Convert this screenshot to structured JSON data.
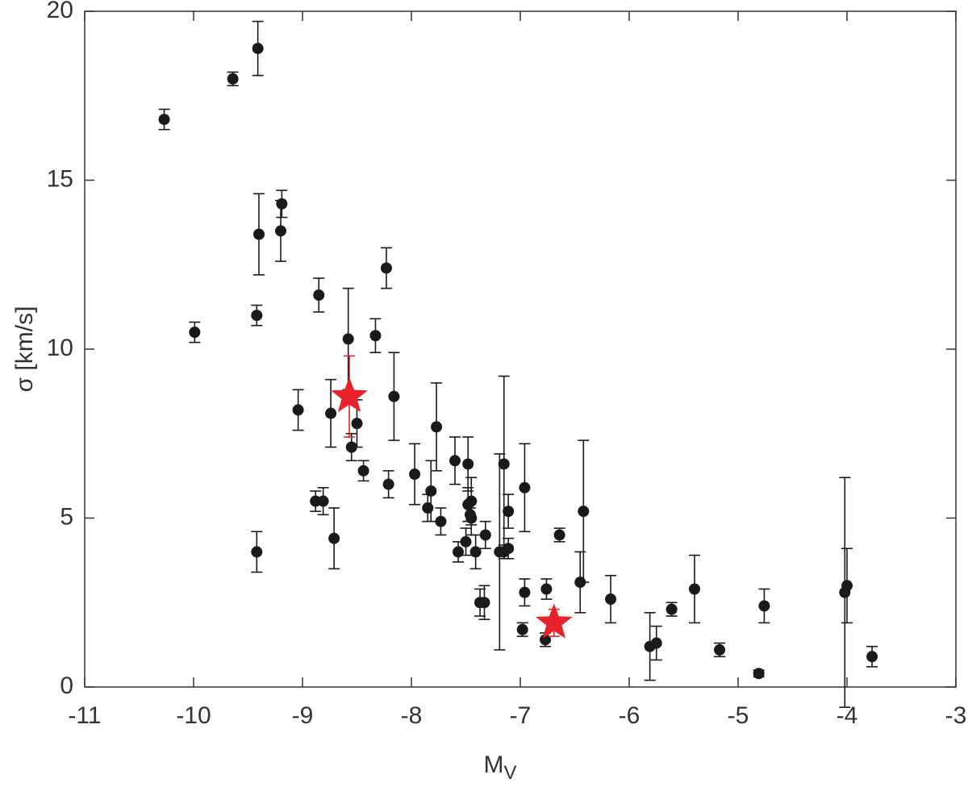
{
  "chart_data": {
    "type": "scatter",
    "x_label": [
      "M",
      "V"
    ],
    "y_label": "σ [km/s]",
    "xlim": [
      -11,
      -3
    ],
    "xticks": [
      -11,
      -10,
      -9,
      -8,
      -7,
      -6,
      -5,
      -4,
      -3
    ],
    "ylim": [
      0,
      20
    ],
    "yticks": [
      0,
      5,
      10,
      15,
      20
    ],
    "series": [
      {
        "color": "#1a1a1a",
        "marker": "circle",
        "x": [
          -10.27,
          -9.99,
          -9.64,
          -9.41,
          -9.4,
          -9.42,
          -9.42,
          -9.19,
          -9.2,
          -9.04,
          -8.85,
          -8.74,
          -8.71,
          -8.88,
          -8.81,
          -8.58,
          -8.55,
          -8.5,
          -8.44,
          -8.33,
          -8.23,
          -8.21,
          -8.16,
          -7.97,
          -7.85,
          -7.82,
          -7.77,
          -7.73,
          -7.6,
          -7.57,
          -7.48,
          -7.5,
          -7.48,
          -7.45,
          -7.46,
          -7.45,
          -7.41,
          -7.37,
          -7.33,
          -7.32,
          -7.19,
          -7.15,
          -7.15,
          -7.11,
          -7.11,
          -6.98,
          -6.96,
          -6.96,
          -6.76,
          -6.77,
          -6.64,
          -6.45,
          -6.42,
          -6.17,
          -5.81,
          -5.75,
          -5.61,
          -5.4,
          -5.17,
          -4.81,
          -4.76,
          -4.02,
          -4.0,
          -3.77
        ],
        "values": [
          16.8,
          10.5,
          18.0,
          18.9,
          13.4,
          11.0,
          4.0,
          14.3,
          13.5,
          8.2,
          11.6,
          8.1,
          4.4,
          5.5,
          5.5,
          10.3,
          7.1,
          7.8,
          6.4,
          10.4,
          12.4,
          6.0,
          8.6,
          6.3,
          5.3,
          5.8,
          7.7,
          4.9,
          6.7,
          4.0,
          6.6,
          4.3,
          5.4,
          5.5,
          5.1,
          5.0,
          4.0,
          2.5,
          2.5,
          4.5,
          4.0,
          6.6,
          4.0,
          4.1,
          5.2,
          1.7,
          2.8,
          5.9,
          2.9,
          1.4,
          4.5,
          3.1,
          5.2,
          2.6,
          1.2,
          1.3,
          2.3,
          2.9,
          1.1,
          0.4,
          2.4,
          2.8,
          3.0,
          0.9
        ],
        "errors": [
          0.3,
          0.3,
          0.2,
          0.8,
          1.2,
          0.3,
          0.6,
          0.4,
          0.9,
          0.6,
          0.5,
          1.0,
          0.9,
          0.3,
          0.4,
          1.5,
          0.4,
          0.7,
          0.3,
          0.5,
          0.6,
          0.4,
          1.3,
          0.9,
          0.4,
          0.9,
          1.3,
          0.4,
          0.7,
          0.3,
          0.8,
          0.4,
          0.5,
          0.7,
          0.2,
          0.5,
          0.5,
          0.4,
          0.5,
          0.4,
          2.9,
          2.6,
          0.2,
          0.3,
          0.5,
          0.2,
          0.4,
          1.3,
          0.3,
          0.2,
          0.2,
          0.9,
          2.1,
          0.7,
          1.0,
          0.5,
          0.2,
          1.0,
          0.2,
          0.1,
          0.5,
          3.4,
          1.1,
          0.3
        ]
      },
      {
        "color": "#e8212a",
        "marker": "star",
        "x": [
          -8.57,
          -6.69
        ],
        "values": [
          8.6,
          1.9
        ],
        "errors": [
          1.2,
          0.4
        ]
      }
    ]
  }
}
